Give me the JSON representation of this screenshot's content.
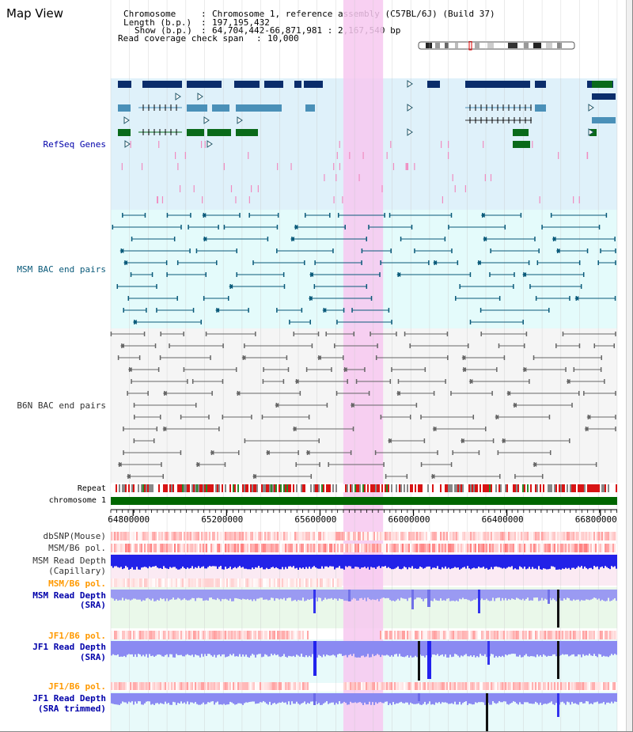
{
  "title": "Map View",
  "info": {
    "chromosome_label": "Chromosome",
    "chromosome_value": "Chromosome 1, reference assembly (C57BL/6J) (Build 37)",
    "length_label": "Length (b.p.)",
    "length_value": "197,195,432",
    "show_label": "Show (b.p.)",
    "show_value": "64,704,442-66,871,981 : 2,167,540 bp",
    "coverage_label": "Read coverage check span",
    "coverage_value": "10,000"
  },
  "region": {
    "start": 64704442,
    "end": 66871981
  },
  "highlight": {
    "start": 65700000,
    "end": 65870000,
    "color": "#f7c8f0"
  },
  "tracks": {
    "refseq": {
      "label": "RefSeq Genes",
      "color": "#0000aa",
      "bg": "#dff1fa"
    },
    "msm_bac": {
      "label": "MSM BAC end pairs",
      "color": "#0a5a7a",
      "bg": "#e4fbfb"
    },
    "b6n_bac": {
      "label": "B6N BAC end pairs",
      "color": "#333333",
      "bg": "#f5f5f5"
    },
    "repeat": {
      "label": "Repeat"
    },
    "chromosome": {
      "label": "chromosome 1",
      "color": "#006600"
    },
    "dbsnp": {
      "label": "dbSNP(Mouse)",
      "color": "#333333"
    },
    "msm_b6_pol_1": {
      "label": "MSM/B6 pol.",
      "color": "#333333"
    },
    "msm_depth_cap": {
      "label_1": "MSM Read Depth",
      "label_2": "(Capillary)",
      "color": "#333333"
    },
    "msm_b6_pol_2": {
      "label": "MSM/B6 pol.",
      "color": "#ff9900"
    },
    "msm_depth_sra": {
      "label_1": "MSM Read Depth",
      "label_2": "(SRA)",
      "color": "#0000aa"
    },
    "jf1_b6_pol_1": {
      "label": "JF1/B6 pol.",
      "color": "#ff9900"
    },
    "jf1_depth_sra": {
      "label_1": "JF1 Read Depth",
      "label_2": "(SRA)",
      "color": "#0000aa"
    },
    "jf1_b6_pol_2": {
      "label": "JF1/B6 pol.",
      "color": "#ff9900"
    },
    "jf1_depth_trim": {
      "label_1": "JF1 Read Depth",
      "label_2": "(SRA trimmed)",
      "color": "#0000aa"
    }
  },
  "axis": {
    "ticks": [
      {
        "value": 64800000,
        "label": "64800000"
      },
      {
        "value": 65200000,
        "label": "65200000"
      },
      {
        "value": 65600000,
        "label": "65600000"
      },
      {
        "value": 66000000,
        "label": "66000000"
      },
      {
        "value": 66400000,
        "label": "66400000"
      },
      {
        "value": 66800000,
        "label": "66800000"
      }
    ]
  },
  "colors": {
    "gene_dark": "#0b2d6b",
    "gene_mid": "#4a90b8",
    "gene_green": "#0a6a1a",
    "pink_tick": "#f08cc0",
    "depth_blue": "#2020ee",
    "depth_light": "#8c8cf0",
    "pol_red": "#f06060"
  }
}
